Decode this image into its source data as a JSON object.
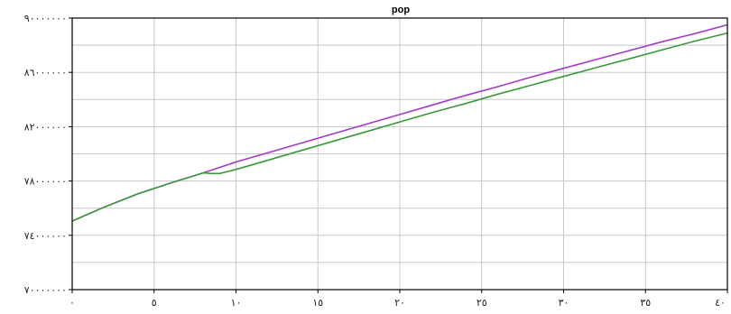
{
  "chart_data": {
    "type": "line",
    "title": "pop",
    "xlabel": "",
    "ylabel": "",
    "xlim": [
      0,
      40
    ],
    "ylim": [
      70000000,
      90000000
    ],
    "x_ticks": [
      0,
      5,
      10,
      15,
      20,
      25,
      30,
      35,
      40
    ],
    "x_tick_labels": [
      "٠",
      "٥",
      "١٠",
      "١٥",
      "٢٠",
      "٢٥",
      "٣٠",
      "٣٥",
      "٤٠"
    ],
    "y_ticks": [
      70000000,
      74000000,
      78000000,
      82000000,
      86000000,
      90000000
    ],
    "y_tick_labels": [
      "٧٠٠٠٠٠٠٠",
      "٧٤٠٠٠٠٠٠",
      "٧٨٠٠٠٠٠٠",
      "٨٢٠٠٠٠٠٠",
      "٨٦٠٠٠٠٠٠",
      "٩٠٠٠٠٠٠٠"
    ],
    "grid": true,
    "series": [
      {
        "color": "#a23bc8",
        "x": [
          0,
          2,
          4,
          6,
          8,
          10,
          12,
          14,
          16,
          18,
          20,
          22,
          24,
          26,
          28,
          30,
          32,
          34,
          36,
          38,
          40
        ],
        "values": [
          75050000,
          76100000,
          77050000,
          77850000,
          78600000,
          79400000,
          80100000,
          80800000,
          81500000,
          82200000,
          82900000,
          83600000,
          84300000,
          84950000,
          85650000,
          86300000,
          86950000,
          87600000,
          88250000,
          88850000,
          89500000
        ]
      },
      {
        "color": "#3a9a3a",
        "x": [
          0,
          2,
          4,
          6,
          8,
          8.5,
          9,
          10,
          12,
          14,
          16,
          18,
          20,
          22,
          24,
          26,
          28,
          30,
          32,
          34,
          36,
          38,
          40
        ],
        "values": [
          75050000,
          76100000,
          77050000,
          77850000,
          78600000,
          78550000,
          78550000,
          78850000,
          79550000,
          80250000,
          80950000,
          81650000,
          82350000,
          83050000,
          83700000,
          84400000,
          85050000,
          85700000,
          86350000,
          87000000,
          87650000,
          88300000,
          88900000
        ]
      }
    ]
  }
}
